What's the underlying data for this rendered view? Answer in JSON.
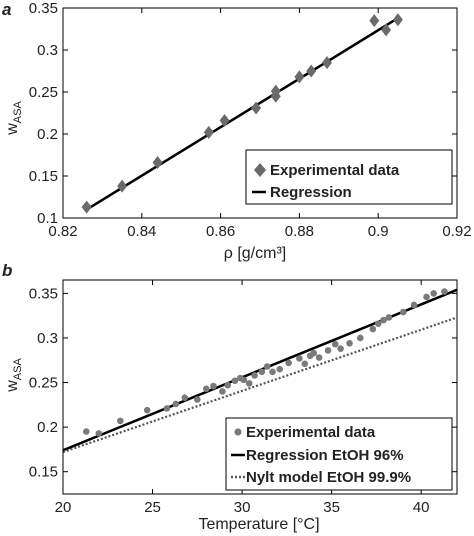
{
  "chart_data": [
    {
      "panel_label": "a",
      "type": "scatter",
      "xlabel": "ρ  [g/cm³]",
      "ylabel": "w_ASA",
      "xlim": [
        0.82,
        0.92
      ],
      "ylim": [
        0.1,
        0.35
      ],
      "x_ticks": [
        "0.82",
        "0.84",
        "0.86",
        "0.88",
        "0.9",
        "0.92"
      ],
      "y_ticks": [
        "0.1",
        "0.15",
        "0.2",
        "0.25",
        "0.3",
        "0.35"
      ],
      "legend_position": "bottom-right",
      "grid": false,
      "series": [
        {
          "name": "Experimental data",
          "kind": "markers",
          "marker": "diamond",
          "color": "#6a6a6a",
          "points": [
            [
              0.826,
              0.113
            ],
            [
              0.835,
              0.138
            ],
            [
              0.844,
              0.166
            ],
            [
              0.857,
              0.202
            ],
            [
              0.861,
              0.216
            ],
            [
              0.869,
              0.231
            ],
            [
              0.874,
              0.245
            ],
            [
              0.874,
              0.251
            ],
            [
              0.88,
              0.268
            ],
            [
              0.883,
              0.275
            ],
            [
              0.887,
              0.285
            ],
            [
              0.899,
              0.335
            ],
            [
              0.902,
              0.324
            ],
            [
              0.905,
              0.336
            ]
          ]
        },
        {
          "name": "Regression",
          "kind": "line",
          "color": "#000000",
          "points": [
            [
              0.826,
              0.11
            ],
            [
              0.905,
              0.338
            ]
          ]
        }
      ]
    },
    {
      "panel_label": "b",
      "type": "scatter",
      "xlabel": "Temperature [°C]",
      "ylabel": "w_ASA",
      "xlim": [
        20,
        42
      ],
      "ylim": [
        0.125,
        0.365
      ],
      "x_ticks": [
        "20",
        "25",
        "30",
        "35",
        "40"
      ],
      "y_ticks": [
        "0.15",
        "0.2",
        "0.25",
        "0.3",
        "0.35"
      ],
      "legend_position": "bottom-right",
      "grid": false,
      "series": [
        {
          "name": "Experimental data",
          "kind": "markers",
          "marker": "circle",
          "color": "#7a7a7a",
          "points": [
            [
              21.3,
              0.195
            ],
            [
              22.0,
              0.193
            ],
            [
              23.2,
              0.207
            ],
            [
              24.7,
              0.219
            ],
            [
              25.8,
              0.221
            ],
            [
              26.3,
              0.226
            ],
            [
              26.8,
              0.233
            ],
            [
              27.5,
              0.231
            ],
            [
              28.0,
              0.243
            ],
            [
              28.4,
              0.246
            ],
            [
              28.9,
              0.24
            ],
            [
              29.2,
              0.247
            ],
            [
              29.6,
              0.252
            ],
            [
              29.9,
              0.255
            ],
            [
              30.1,
              0.253
            ],
            [
              30.4,
              0.249
            ],
            [
              30.7,
              0.258
            ],
            [
              31.1,
              0.262
            ],
            [
              31.4,
              0.268
            ],
            [
              31.7,
              0.262
            ],
            [
              32.1,
              0.265
            ],
            [
              32.6,
              0.272
            ],
            [
              33.2,
              0.277
            ],
            [
              33.5,
              0.271
            ],
            [
              33.8,
              0.28
            ],
            [
              34.0,
              0.283
            ],
            [
              34.3,
              0.278
            ],
            [
              34.8,
              0.286
            ],
            [
              35.2,
              0.293
            ],
            [
              35.5,
              0.288
            ],
            [
              36.0,
              0.294
            ],
            [
              36.6,
              0.3
            ],
            [
              37.3,
              0.31
            ],
            [
              37.6,
              0.316
            ],
            [
              37.9,
              0.32
            ],
            [
              38.2,
              0.323
            ],
            [
              39.0,
              0.329
            ],
            [
              39.6,
              0.337
            ],
            [
              40.3,
              0.346
            ],
            [
              40.7,
              0.35
            ],
            [
              41.3,
              0.352
            ]
          ]
        },
        {
          "name": "Regression EtOH 96%",
          "kind": "line",
          "color": "#000000",
          "points": [
            [
              20,
              0.174
            ],
            [
              42,
              0.354
            ]
          ]
        },
        {
          "name": "Nylt model EtOH 99.9%",
          "kind": "dotted",
          "color": "#555555",
          "points": [
            [
              20,
              0.172
            ],
            [
              42,
              0.323
            ]
          ]
        }
      ]
    }
  ]
}
